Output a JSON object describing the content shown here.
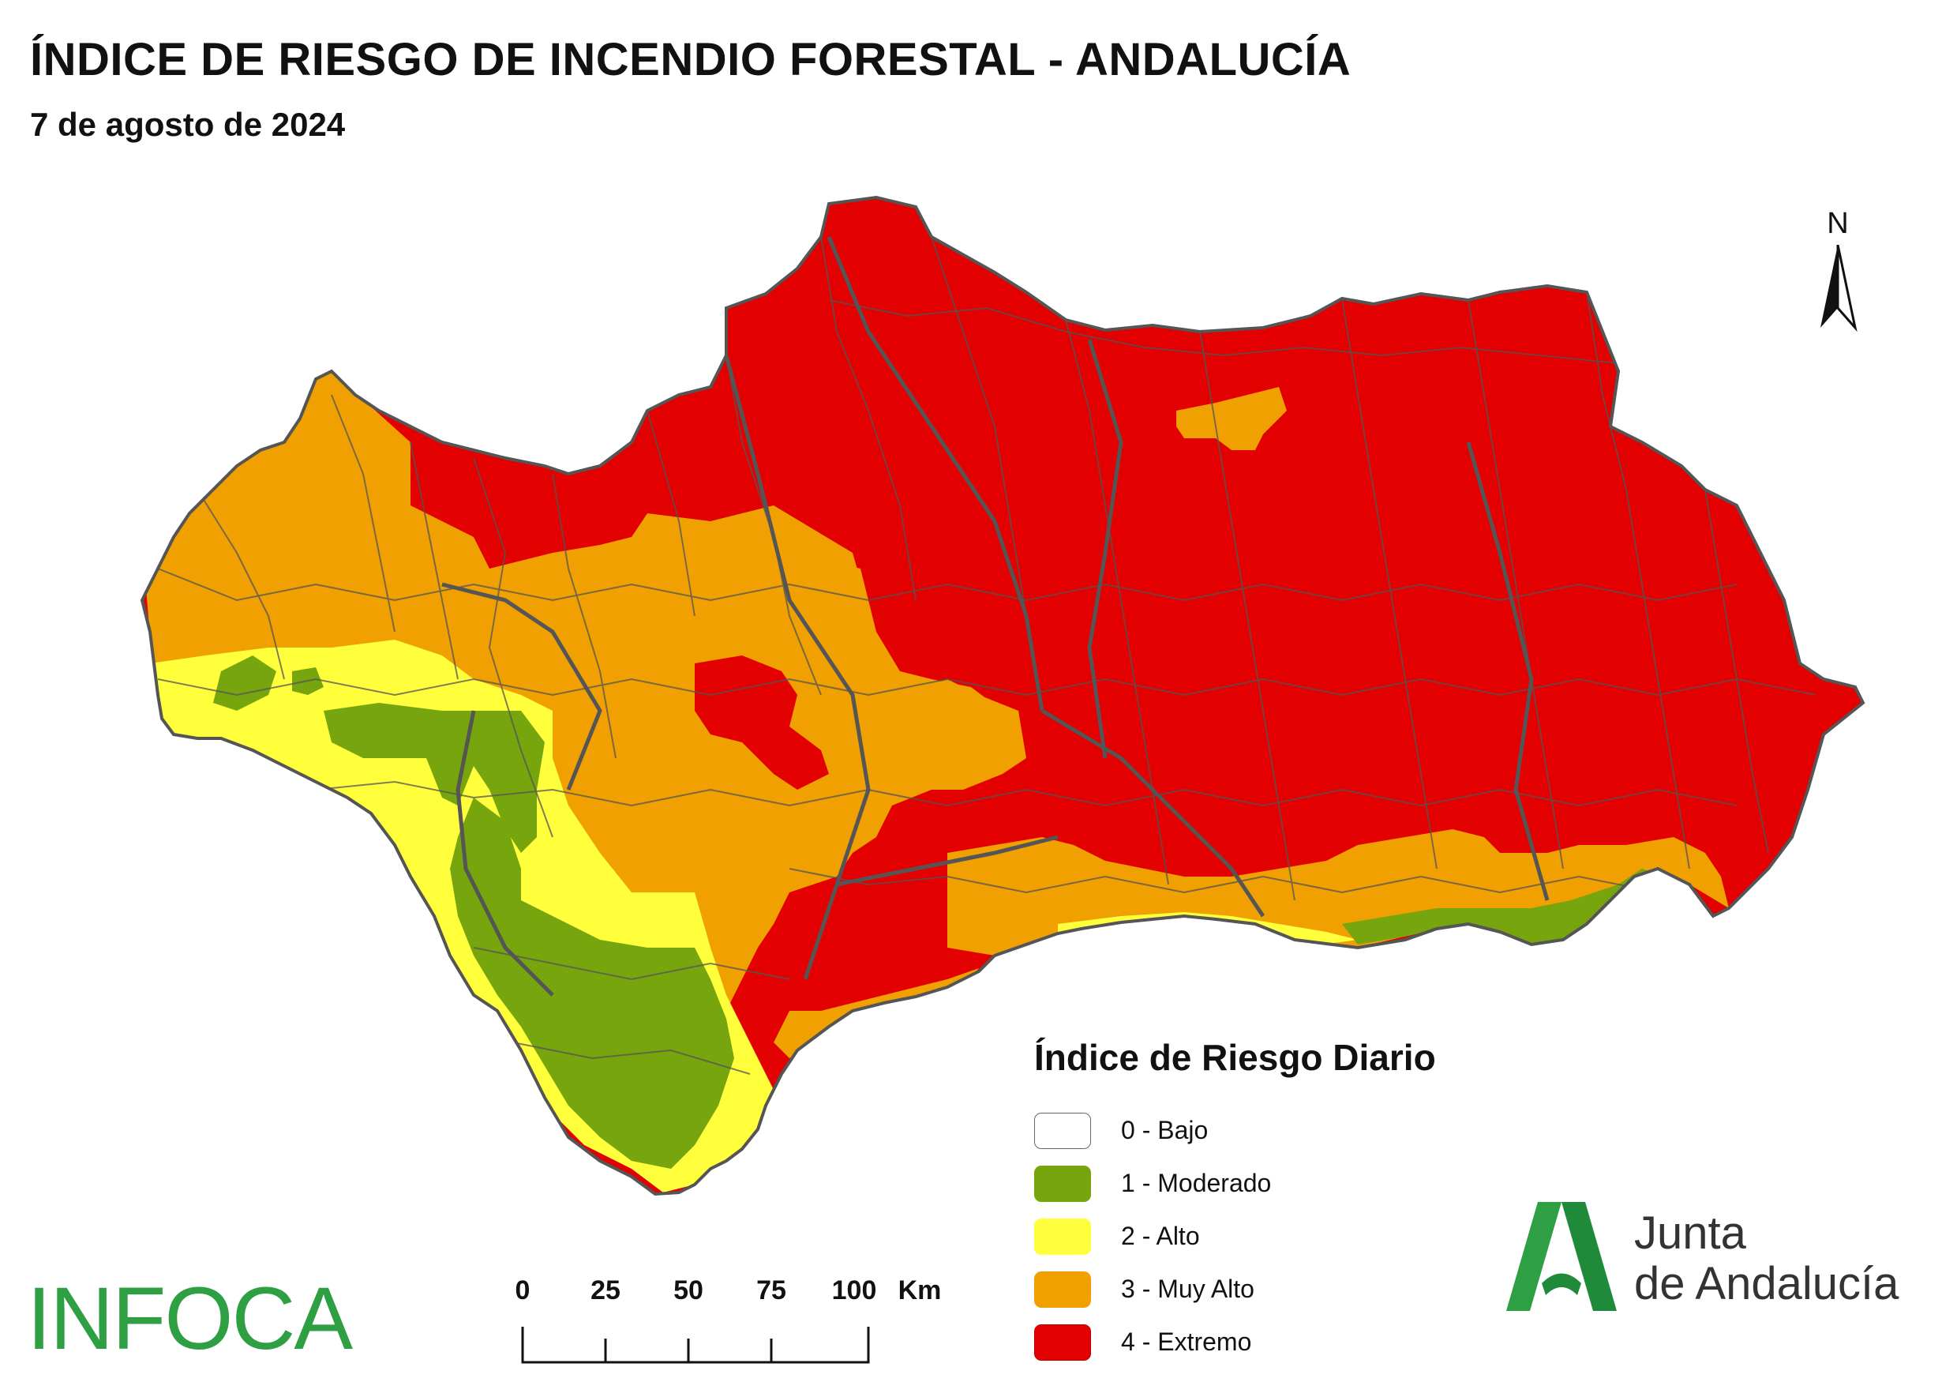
{
  "title": "ÍNDICE DE RIESGO DE INCENDIO FORESTAL - ANDALUCÍA",
  "subtitle": "7 de agosto de 2024",
  "north_arrow": {
    "label": "N",
    "icon": "north-arrow-icon"
  },
  "legend": {
    "title": "Índice de Riesgo Diario",
    "items": [
      {
        "label": "0 - Bajo",
        "color": "#ffffff"
      },
      {
        "label": "1 - Moderado",
        "color": "#76a50e"
      },
      {
        "label": "2 - Alto",
        "color": "#ffff3c"
      },
      {
        "label": "3 - Muy Alto",
        "color": "#f0a000"
      },
      {
        "label": "4 - Extremo",
        "color": "#e30000"
      }
    ]
  },
  "scale_bar": {
    "ticks": [
      "0",
      "25",
      "50",
      "75",
      "100"
    ],
    "unit": "Km"
  },
  "branding": {
    "infoca": "INFOCA",
    "junta_line1": "Junta",
    "junta_line2": "de Andalucía",
    "infoca_color": "#2ea043",
    "junta_color": "#1f8a3a"
  }
}
